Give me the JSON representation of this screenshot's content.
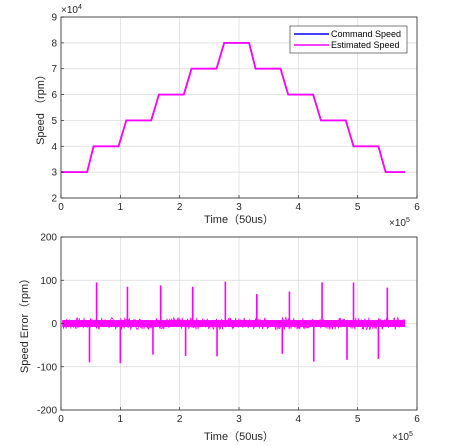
{
  "colors": {
    "command": "#0000ff",
    "estimated": "#ff00ff",
    "grid": "#d9d9d9",
    "axis": "#262626"
  },
  "chart_data": [
    {
      "type": "line",
      "xlabel": "Time（50us）",
      "ylabel": "Speed （rpm）",
      "x_exponent_label": "×10",
      "x_exponent": "5",
      "y_exponent_label": "×10",
      "y_exponent": "4",
      "xlim": [
        0,
        6
      ],
      "ylim": [
        2,
        9
      ],
      "x_ticks": [
        "0",
        "1",
        "2",
        "3",
        "4",
        "5",
        "6"
      ],
      "y_ticks": [
        "2",
        "3",
        "4",
        "5",
        "6",
        "7",
        "8",
        "9"
      ],
      "grid": true,
      "legend_position": "top-right",
      "series": [
        {
          "name": "Command Speed",
          "color": "#0000ff",
          "x": [
            0,
            0.44,
            0.55,
            0.97,
            1.1,
            1.52,
            1.65,
            2.07,
            2.2,
            2.62,
            2.75,
            3.17,
            3.28,
            3.7,
            3.83,
            4.25,
            4.38,
            4.8,
            4.93,
            5.35,
            5.47,
            5.8
          ],
          "y": [
            3,
            3,
            4,
            4,
            5,
            5,
            6,
            6,
            7,
            7,
            8,
            8,
            7,
            7,
            6,
            6,
            5,
            5,
            4,
            4,
            3,
            3
          ]
        },
        {
          "name": "Estimated Speed",
          "color": "#ff00ff",
          "x": [
            0,
            0.44,
            0.55,
            0.97,
            1.1,
            1.52,
            1.65,
            2.07,
            2.2,
            2.62,
            2.75,
            3.17,
            3.28,
            3.7,
            3.83,
            4.25,
            4.38,
            4.8,
            4.93,
            5.35,
            5.47,
            5.8
          ],
          "y": [
            3,
            3,
            4,
            4,
            5,
            5,
            6,
            6,
            7,
            7,
            8,
            8,
            7,
            7,
            6,
            6,
            5,
            5,
            4,
            4,
            3,
            3
          ]
        }
      ]
    },
    {
      "type": "line",
      "xlabel": "Time（50us）",
      "ylabel": "Speed Error（rpm）",
      "x_exponent_label": "×10",
      "x_exponent": "5",
      "xlim": [
        0,
        6
      ],
      "ylim": [
        -200,
        200
      ],
      "x_ticks": [
        "0",
        "1",
        "2",
        "3",
        "4",
        "5",
        "6"
      ],
      "y_ticks": [
        "-200",
        "-100",
        "0",
        "100",
        "200"
      ],
      "grid": true,
      "series": [
        {
          "name": "",
          "color": "#ff00ff",
          "x_range": [
            0.02,
            5.8
          ],
          "noise_band": [
            -8,
            8
          ],
          "spikes": [
            {
              "x_up": 0.6,
              "y_up": 95,
              "x_down": 0.48,
              "y_down": -90
            },
            {
              "x_up": 1.12,
              "y_up": 85,
              "x_down": 1.0,
              "y_down": -92
            },
            {
              "x_up": 1.68,
              "y_up": 88,
              "x_down": 1.55,
              "y_down": -72
            },
            {
              "x_up": 2.22,
              "y_up": 85,
              "x_down": 2.1,
              "y_down": -75
            },
            {
              "x_up": 2.77,
              "y_up": 97,
              "x_down": 2.63,
              "y_down": -76
            },
            {
              "x_up": 3.3,
              "y_up": 68,
              "x_down": 3.73,
              "y_down": -70
            },
            {
              "x_up": 3.85,
              "y_up": 74,
              "x_down": 4.26,
              "y_down": -88
            },
            {
              "x_up": 4.4,
              "y_up": 95,
              "x_down": 4.82,
              "y_down": -84
            },
            {
              "x_up": 4.93,
              "y_up": 95,
              "x_down": 5.35,
              "y_down": -82
            },
            {
              "x_up": 5.5,
              "y_up": 83
            }
          ]
        }
      ]
    }
  ]
}
